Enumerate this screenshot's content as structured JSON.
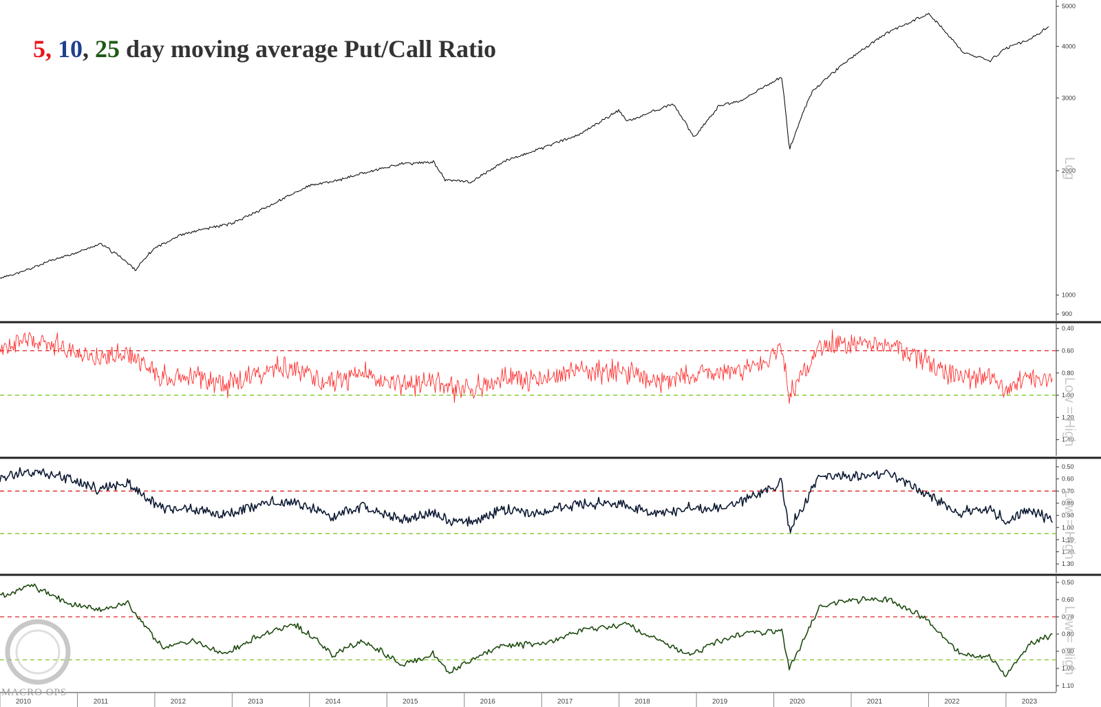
{
  "title": {
    "n5": "5",
    "sep1": ",",
    "n10": "10",
    "sep2": ",",
    "n25": "25",
    "rest": "day moving average Put/Call Ratio"
  },
  "logo": {
    "text": "MACRO OPS"
  },
  "side_labels": {
    "top": "Log",
    "p1": "Low = High",
    "p2": "Low = High",
    "p3": "Low = High"
  },
  "colors": {
    "price": "#111111",
    "pc5": "#ff2a2a",
    "pc10": "#0d1a33",
    "pc25": "#1e4a10",
    "upper_line": "#e02020",
    "lower_line": "#7cc520"
  },
  "chart_data": [
    {
      "type": "line",
      "name": "price",
      "scale": "log",
      "ylim": [
        880,
        5100
      ],
      "yticks": [
        900,
        1000,
        2000,
        3000,
        4000,
        5000
      ],
      "x": [
        2010.0,
        2010.3,
        2010.6,
        2011.0,
        2011.3,
        2011.6,
        2011.75,
        2012.0,
        2012.3,
        2012.6,
        2013.0,
        2013.5,
        2014.0,
        2014.4,
        2014.8,
        2015.2,
        2015.6,
        2015.75,
        2016.1,
        2016.5,
        2017.0,
        2017.5,
        2018.0,
        2018.1,
        2018.7,
        2018.97,
        2019.3,
        2019.6,
        2020.1,
        2020.2,
        2020.5,
        2021.0,
        2021.5,
        2022.0,
        2022.45,
        2022.8,
        2023.0,
        2023.3,
        2023.55
      ],
      "y": [
        1100,
        1140,
        1200,
        1270,
        1330,
        1220,
        1150,
        1300,
        1390,
        1440,
        1490,
        1650,
        1840,
        1900,
        2000,
        2080,
        2100,
        1900,
        1880,
        2100,
        2270,
        2450,
        2800,
        2630,
        2900,
        2400,
        2880,
        2960,
        3380,
        2240,
        3120,
        3750,
        4350,
        4790,
        3850,
        3700,
        3950,
        4150,
        4450
      ]
    },
    {
      "type": "line",
      "name": "5 day moving average Put/Call Ratio",
      "scale": "inverted",
      "ylim": [
        0.38,
        1.52
      ],
      "yticks": [
        0.4,
        0.6,
        0.8,
        1.0,
        1.2,
        1.4
      ],
      "reference_lines": [
        0.6,
        1.0
      ],
      "x": [
        2010.0,
        2010.4,
        2010.9,
        2011.3,
        2011.65,
        2012.1,
        2012.5,
        2012.9,
        2013.3,
        2013.8,
        2014.1,
        2014.3,
        2014.7,
        2015.2,
        2015.6,
        2015.8,
        2016.1,
        2016.5,
        2017.0,
        2017.5,
        2018.1,
        2018.5,
        2018.95,
        2019.3,
        2019.6,
        2020.1,
        2020.2,
        2020.6,
        2021.0,
        2021.5,
        2022.0,
        2022.4,
        2022.8,
        2023.0,
        2023.3,
        2023.6
      ],
      "y": [
        0.6,
        0.5,
        0.6,
        0.66,
        0.62,
        0.85,
        0.82,
        0.9,
        0.8,
        0.76,
        0.85,
        0.9,
        0.8,
        0.92,
        0.86,
        0.95,
        0.94,
        0.84,
        0.86,
        0.78,
        0.8,
        0.88,
        0.82,
        0.82,
        0.76,
        0.6,
        1.0,
        0.55,
        0.55,
        0.54,
        0.72,
        0.85,
        0.82,
        0.95,
        0.82,
        0.88
      ]
    },
    {
      "type": "line",
      "name": "10 day moving average Put/Call Ratio",
      "scale": "inverted",
      "ylim": [
        0.46,
        1.35
      ],
      "yticks": [
        0.5,
        0.6,
        0.7,
        0.8,
        0.9,
        1.0,
        1.1,
        1.2,
        1.3
      ],
      "reference_lines": [
        0.7,
        1.05
      ],
      "x": [
        2010.0,
        2010.4,
        2010.9,
        2011.3,
        2011.65,
        2012.1,
        2012.5,
        2012.9,
        2013.3,
        2013.8,
        2014.1,
        2014.3,
        2014.7,
        2015.2,
        2015.6,
        2015.8,
        2016.1,
        2016.5,
        2017.0,
        2017.5,
        2018.1,
        2018.5,
        2018.95,
        2019.3,
        2019.6,
        2020.1,
        2020.2,
        2020.6,
        2021.0,
        2021.5,
        2022.0,
        2022.4,
        2022.8,
        2023.0,
        2023.3,
        2023.6
      ],
      "y": [
        0.6,
        0.53,
        0.6,
        0.68,
        0.64,
        0.85,
        0.84,
        0.9,
        0.82,
        0.78,
        0.86,
        0.92,
        0.82,
        0.94,
        0.88,
        0.96,
        0.95,
        0.86,
        0.88,
        0.8,
        0.82,
        0.9,
        0.84,
        0.84,
        0.78,
        0.62,
        1.02,
        0.58,
        0.58,
        0.56,
        0.74,
        0.88,
        0.85,
        0.96,
        0.84,
        0.95
      ]
    },
    {
      "type": "line",
      "name": "25 day moving average Put/Call Ratio",
      "scale": "inverted",
      "ylim": [
        0.48,
        1.12
      ],
      "yticks": [
        0.5,
        0.6,
        0.7,
        0.8,
        0.9,
        1.0,
        1.1
      ],
      "reference_lines": [
        0.7,
        0.95
      ],
      "x": [
        2010.0,
        2010.4,
        2010.9,
        2011.3,
        2011.65,
        2012.1,
        2012.5,
        2012.9,
        2013.3,
        2013.8,
        2014.1,
        2014.3,
        2014.7,
        2015.2,
        2015.6,
        2015.8,
        2016.1,
        2016.5,
        2017.0,
        2017.5,
        2018.1,
        2018.5,
        2018.95,
        2019.3,
        2019.6,
        2020.1,
        2020.2,
        2020.6,
        2021.0,
        2021.5,
        2022.0,
        2022.4,
        2022.8,
        2023.0,
        2023.3,
        2023.6
      ],
      "y": [
        0.58,
        0.52,
        0.62,
        0.66,
        0.62,
        0.88,
        0.84,
        0.92,
        0.82,
        0.74,
        0.84,
        0.92,
        0.84,
        0.98,
        0.92,
        1.02,
        0.95,
        0.86,
        0.86,
        0.78,
        0.74,
        0.84,
        0.92,
        0.84,
        0.8,
        0.78,
        1.0,
        0.64,
        0.6,
        0.6,
        0.72,
        0.92,
        0.94,
        1.04,
        0.86,
        0.8
      ]
    }
  ],
  "x_axis": {
    "ticks": [
      "2010",
      "2011",
      "2012",
      "2013",
      "2014",
      "2015",
      "2016",
      "2017",
      "2018",
      "2019",
      "2020",
      "2021",
      "2022",
      "2023"
    ]
  }
}
